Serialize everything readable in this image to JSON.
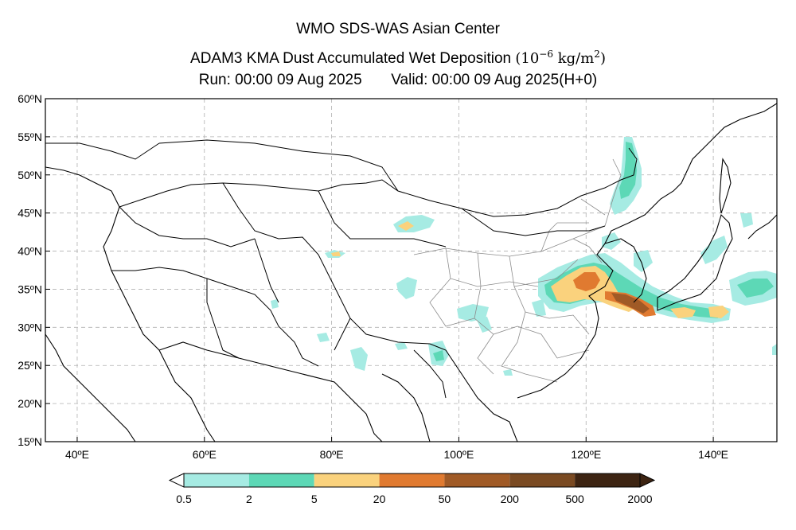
{
  "header": {
    "line1": "WMO SDS-WAS Asian Center",
    "line2_main": "ADAM3 KMA Dust Accumulated Wet Deposition",
    "line2_units_open": "(10",
    "line2_units_exp": "−6",
    "line2_units_mid": " kg/m",
    "line2_units_exp2": "2",
    "line2_units_close": ")",
    "run_label": "Run: 00:00 09 Aug 2025",
    "valid_label": "Valid: 00:00 09 Aug 2025(H+0)"
  },
  "map": {
    "lon_range": [
      35,
      150
    ],
    "lat_range": [
      15,
      60
    ],
    "lat_ticks": [
      {
        "value": 60,
        "label": "60ºN"
      },
      {
        "value": 55,
        "label": "55ºN"
      },
      {
        "value": 50,
        "label": "50ºN"
      },
      {
        "value": 45,
        "label": "45ºN"
      },
      {
        "value": 40,
        "label": "40ºN"
      },
      {
        "value": 35,
        "label": "35ºN"
      },
      {
        "value": 30,
        "label": "30ºN"
      },
      {
        "value": 25,
        "label": "25ºN"
      },
      {
        "value": 20,
        "label": "20ºN"
      },
      {
        "value": 15,
        "label": "15ºN"
      }
    ],
    "lon_ticks": [
      {
        "value": 40,
        "label": "40ºE"
      },
      {
        "value": 60,
        "label": "60ºE"
      },
      {
        "value": 80,
        "label": "80ºE"
      },
      {
        "value": 100,
        "label": "100ºE"
      },
      {
        "value": 120,
        "label": "120ºE"
      },
      {
        "value": 140,
        "label": "140ºE"
      }
    ],
    "grid": true,
    "grid_color": "#b0b0b0"
  },
  "colorbar": {
    "ticks": [
      "0.5",
      "2",
      "5",
      "20",
      "50",
      "200",
      "500",
      "2000"
    ],
    "colors": [
      "#a6ebe3",
      "#5dd8b6",
      "#fad27d",
      "#e07a30",
      "#a05a26",
      "#7a4a22",
      "#3d2412"
    ],
    "under_color": "#ffffff",
    "over_color": "#3d2412"
  },
  "deposition_colors": {
    "c1": "#a6ebe3",
    "c2": "#5dd8b6",
    "c3": "#fad27d",
    "c4": "#e07a30",
    "c5": "#a05a26",
    "c6": "#7a4a22"
  }
}
